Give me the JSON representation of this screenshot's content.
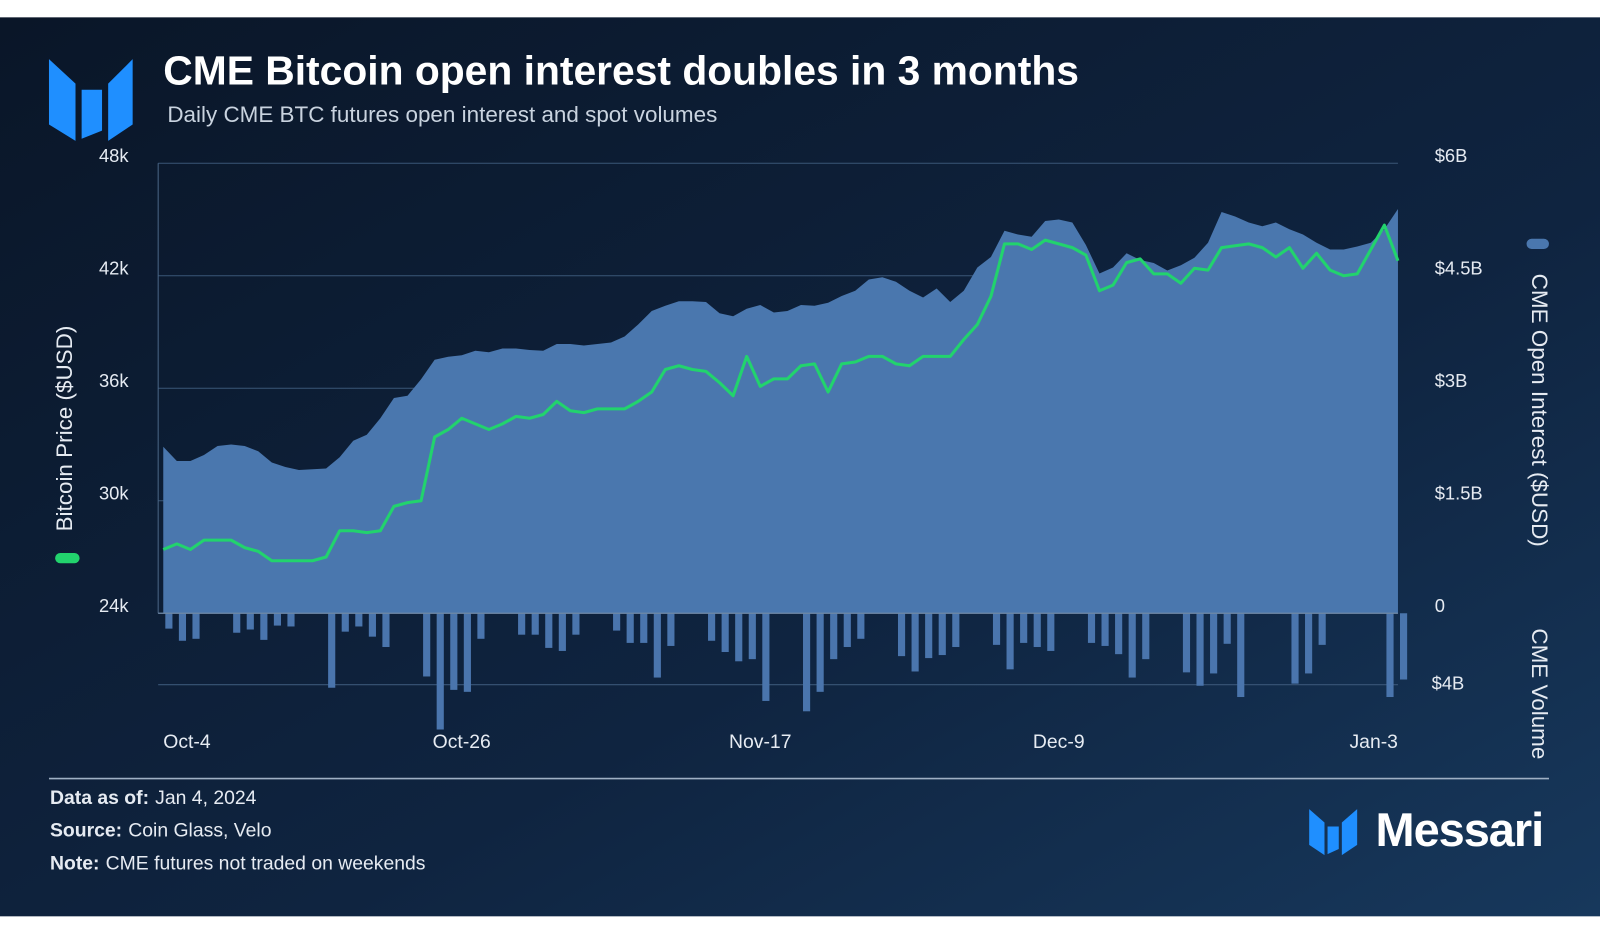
{
  "chart_data": {
    "type": "combo",
    "title": "CME Bitcoin open interest doubles in 3 months",
    "subtitle": "Daily CME BTC futures open interest and spot volumes",
    "ylabel": "Bitcoin Price ($USD)",
    "y2label": "CME Open Interest ($USD)",
    "y3label": "CME Volume",
    "x": [
      "Oct-4",
      "Oct-5",
      "Oct-6",
      "Oct-7",
      "Oct-8",
      "Oct-9",
      "Oct-10",
      "Oct-11",
      "Oct-12",
      "Oct-13",
      "Oct-14",
      "Oct-15",
      "Oct-16",
      "Oct-17",
      "Oct-18",
      "Oct-19",
      "Oct-20",
      "Oct-21",
      "Oct-22",
      "Oct-23",
      "Oct-24",
      "Oct-25",
      "Oct-26",
      "Oct-27",
      "Oct-28",
      "Oct-29",
      "Oct-30",
      "Oct-31",
      "Nov-1",
      "Nov-2",
      "Nov-3",
      "Nov-4",
      "Nov-5",
      "Nov-6",
      "Nov-7",
      "Nov-8",
      "Nov-9",
      "Nov-10",
      "Nov-11",
      "Nov-12",
      "Nov-13",
      "Nov-14",
      "Nov-15",
      "Nov-16",
      "Nov-17",
      "Nov-18",
      "Nov-19",
      "Nov-20",
      "Nov-21",
      "Nov-22",
      "Nov-23",
      "Nov-24",
      "Nov-25",
      "Nov-26",
      "Nov-27",
      "Nov-28",
      "Nov-29",
      "Nov-30",
      "Dec-1",
      "Dec-2",
      "Dec-3",
      "Dec-4",
      "Dec-5",
      "Dec-6",
      "Dec-7",
      "Dec-8",
      "Dec-9",
      "Dec-10",
      "Dec-11",
      "Dec-12",
      "Dec-13",
      "Dec-14",
      "Dec-15",
      "Dec-16",
      "Dec-17",
      "Dec-18",
      "Dec-19",
      "Dec-20",
      "Dec-21",
      "Dec-22",
      "Dec-23",
      "Dec-24",
      "Dec-25",
      "Dec-26",
      "Dec-27",
      "Dec-28",
      "Dec-29",
      "Dec-30",
      "Dec-31",
      "Jan-1",
      "Jan-2",
      "Jan-3"
    ],
    "xticks": [
      "Oct-4",
      "Oct-26",
      "Nov-17",
      "Dec-9",
      "Jan-3"
    ],
    "ylim": [
      24000,
      48000
    ],
    "yticks": [
      {
        "value": 24000,
        "label": "24k"
      },
      {
        "value": 30000,
        "label": "30k"
      },
      {
        "value": 36000,
        "label": "36k"
      },
      {
        "value": 42000,
        "label": "42k"
      },
      {
        "value": 48000,
        "label": "48k"
      }
    ],
    "y2lim": [
      0,
      6
    ],
    "y2ticks": [
      0,
      {
        "value": 1.5,
        "label": "$1.5B"
      },
      {
        "value": 3,
        "label": "$3B"
      },
      {
        "value": 4.5,
        "label": "$4.5B"
      },
      {
        "value": 6,
        "label": "$6B"
      }
    ],
    "y3lim": [
      0,
      8
    ],
    "y3ticks": [
      {
        "value": 4,
        "label": "$4B"
      }
    ],
    "grid": true,
    "series": [
      {
        "name": "Bitcoin Price ($USD)",
        "type": "line",
        "axis": "y",
        "color": "#22d36d",
        "values": [
          27400,
          27700,
          27400,
          27900,
          27900,
          27900,
          27500,
          27300,
          26800,
          26800,
          26800,
          26800,
          27000,
          28400,
          28400,
          28300,
          28400,
          29700,
          29900,
          30000,
          33400,
          33800,
          34400,
          34100,
          33800,
          34100,
          34500,
          34400,
          34600,
          35300,
          34800,
          34700,
          34900,
          34900,
          34900,
          35300,
          35800,
          37000,
          37200,
          37000,
          36900,
          36300,
          35600,
          37700,
          36100,
          36500,
          36500,
          37200,
          37300,
          35800,
          37300,
          37400,
          37700,
          37700,
          37300,
          37200,
          37700,
          37700,
          37700,
          38600,
          39400,
          40900,
          43700,
          43700,
          43400,
          43900,
          43700,
          43500,
          43100,
          41200,
          41500,
          42700,
          42900,
          42100,
          42100,
          41600,
          42400,
          42300,
          43500,
          43600,
          43700,
          43500,
          43000,
          43500,
          42400,
          43200,
          42300,
          42000,
          42100,
          43400,
          44700,
          42800
        ]
      },
      {
        "name": "CME Open Interest ($USD)",
        "type": "area",
        "axis": "y2",
        "color": "#4a77ae",
        "values": [
          2.22,
          2.03,
          2.03,
          2.11,
          2.23,
          2.25,
          2.23,
          2.16,
          2.01,
          1.95,
          1.91,
          1.92,
          1.93,
          2.08,
          2.3,
          2.38,
          2.6,
          2.87,
          2.9,
          3.12,
          3.38,
          3.42,
          3.44,
          3.5,
          3.48,
          3.53,
          3.53,
          3.51,
          3.5,
          3.59,
          3.59,
          3.57,
          3.59,
          3.61,
          3.69,
          3.85,
          4.03,
          4.1,
          4.16,
          4.16,
          4.15,
          4,
          3.96,
          4.06,
          4.11,
          4.01,
          4.03,
          4.11,
          4.1,
          4.14,
          4.23,
          4.3,
          4.45,
          4.48,
          4.42,
          4.3,
          4.21,
          4.33,
          4.15,
          4.3,
          4.61,
          4.75,
          5.1,
          5.05,
          5.02,
          5.23,
          5.25,
          5.21,
          4.91,
          4.53,
          4.61,
          4.8,
          4.71,
          4.67,
          4.57,
          4.64,
          4.74,
          4.94,
          5.35,
          5.29,
          5.21,
          5.16,
          5.21,
          5.12,
          5.05,
          4.94,
          4.85,
          4.85,
          4.89,
          4.94,
          5.12,
          5.39
        ]
      },
      {
        "name": "CME Volume",
        "type": "bar",
        "axis": "y3",
        "color": "#4a75ad",
        "values": [
          0.86,
          1.54,
          1.43,
          null,
          null,
          1.09,
          0.91,
          1.49,
          0.69,
          0.74,
          null,
          null,
          4.17,
          1.03,
          0.74,
          1.31,
          1.89,
          null,
          null,
          3.54,
          6.51,
          4.29,
          4.4,
          1.43,
          null,
          null,
          1.2,
          1.2,
          1.94,
          2.11,
          1.2,
          null,
          null,
          0.97,
          1.66,
          1.66,
          3.6,
          1.83,
          null,
          null,
          1.54,
          2.17,
          2.69,
          2.57,
          4.91,
          null,
          null,
          5.49,
          4.4,
          2.57,
          1.89,
          1.43,
          null,
          null,
          2.4,
          3.26,
          2.51,
          2.34,
          1.89,
          null,
          null,
          1.77,
          3.14,
          1.66,
          1.89,
          2.11,
          null,
          null,
          1.66,
          1.83,
          2.29,
          3.6,
          2.57,
          null,
          null,
          3.31,
          4.06,
          3.37,
          1.71,
          4.69,
          null,
          null,
          null,
          3.94,
          3.37,
          1.77,
          null,
          null,
          null,
          null,
          4.69,
          3.71
        ]
      }
    ]
  },
  "footer": [
    {
      "label": "Data as of:",
      "value": "Jan 4, 2024"
    },
    {
      "label": "Source:",
      "value": "Coin Glass, Velo"
    },
    {
      "label": "Note:",
      "value": "CME futures not traded on weekends"
    }
  ],
  "brand": "Messari"
}
